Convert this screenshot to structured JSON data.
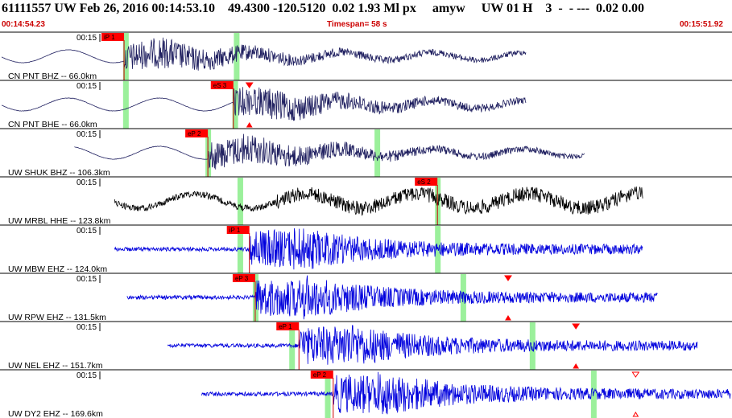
{
  "header": {
    "title": "61111557 UW Feb 26, 2016 00:14:53.10    49.4300 -120.5120  0.02 1.93 Ml px     amyw     UW 01 H    3  -  - ---  0.02 0.00",
    "start_time": "00:14:54.23",
    "timespan": "Timespan=  58 s",
    "end_time": "00:15:51.92"
  },
  "colors": {
    "background": "#ffffff",
    "header_text": "#000000",
    "time_text": "#cc0000",
    "pick_box": "#ff0000",
    "pick_line": "#cc0000",
    "window_band": "#90ee90",
    "trace_dark": "#202060",
    "trace_black": "#000000",
    "trace_blue": "#0000dd"
  },
  "channels": [
    {
      "id": "pnt-bhz",
      "time_tick": "00:15",
      "label": "CN PNT BHZ -- 66.0km",
      "color": "#202060",
      "start": 0.0,
      "end": 0.72,
      "kind": "longperiod",
      "pick": {
        "label": "iP 1",
        "pos": 0.168
      },
      "bands": [
        0.17,
        0.322
      ],
      "markers": []
    },
    {
      "id": "pnt-bhe",
      "time_tick": "00:15",
      "label": "CN PNT BHE -- 66.0km",
      "color": "#202060",
      "start": 0.0,
      "end": 0.72,
      "kind": "longperiod",
      "pick": {
        "label": "eS 3",
        "pos": 0.318
      },
      "bands": [
        0.17,
        0.32
      ],
      "markers": [
        {
          "pos": 0.34,
          "dir": "down"
        }
      ]
    },
    {
      "id": "shuk-bhz",
      "time_tick": "00:15",
      "label": "UW SHUK BHZ -- 106.3km",
      "color": "#202060",
      "start": 0.1,
      "end": 0.8,
      "kind": "longperiod",
      "pick": {
        "label": "eP 2",
        "pos": 0.283
      },
      "bands": [
        0.283,
        0.515
      ],
      "markers": []
    },
    {
      "id": "mrbl-hhe",
      "time_tick": "00:15",
      "label": "UW MRBL HHE -- 123.8km",
      "color": "#000000",
      "start": 0.155,
      "end": 0.88,
      "kind": "mixed",
      "pick": {
        "label": "eS 2",
        "pos": 0.598
      },
      "bands": [
        0.327,
        0.598
      ],
      "markers": []
    },
    {
      "id": "mbw-ehz",
      "time_tick": "00:15",
      "label": "UW MBW EHZ -- 124.0km",
      "color": "#0000dd",
      "start": 0.155,
      "end": 0.88,
      "kind": "short",
      "pick": {
        "label": "iP 1",
        "pos": 0.34
      },
      "bands": [
        0.327,
        0.598
      ],
      "markers": []
    },
    {
      "id": "rpw-ehz",
      "time_tick": "00:15",
      "label": "UW RPW EHZ -- 131.5km",
      "color": "#0000dd",
      "start": 0.172,
      "end": 0.9,
      "kind": "short",
      "pick": {
        "label": "eP 3",
        "pos": 0.348
      },
      "bands": [
        0.348,
        0.633
      ],
      "markers": [
        {
          "pos": 0.695,
          "dir": "down"
        }
      ]
    },
    {
      "id": "nel-ehz",
      "time_tick": "00:15",
      "label": "UW NEL EHZ -- 151.7km",
      "color": "#0000dd",
      "start": 0.228,
      "end": 0.955,
      "kind": "short",
      "pick": {
        "label": "eP 1",
        "pos": 0.408
      },
      "bands": [
        0.398,
        0.728
      ],
      "markers": [
        {
          "pos": 0.788,
          "dir": "down"
        }
      ]
    },
    {
      "id": "dy2-ehz",
      "time_tick": "00:15",
      "label": "UW DY2 EHZ -- 169.6km",
      "color": "#0000dd",
      "start": 0.274,
      "end": 1.0,
      "kind": "short",
      "pick": {
        "label": "eP 2",
        "pos": 0.455
      },
      "bands": [
        0.447,
        0.812
      ],
      "markers": [
        {
          "pos": 0.87,
          "dir": "down-open"
        }
      ]
    }
  ]
}
